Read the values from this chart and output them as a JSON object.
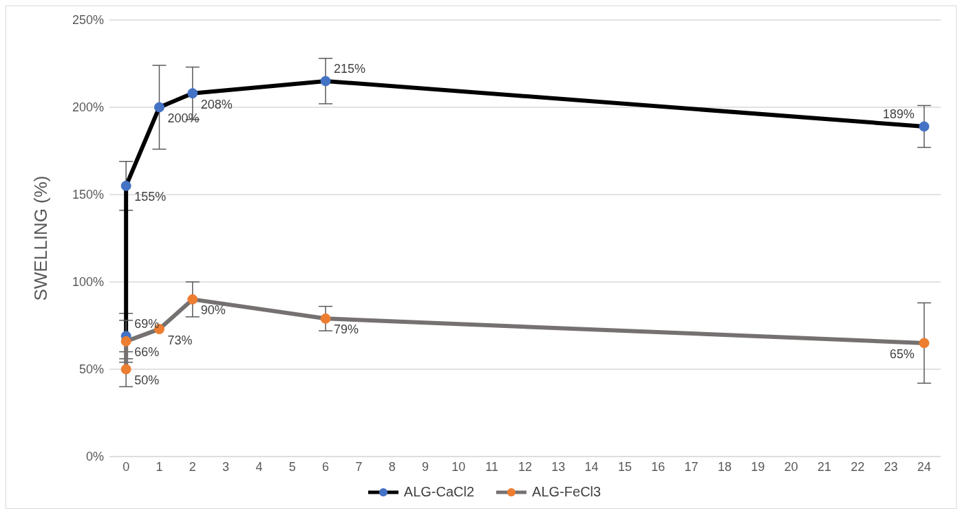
{
  "chart_data": {
    "type": "line",
    "ylabel": "SWELLING (%)",
    "xlim": [
      -0.5,
      24.5
    ],
    "xticks": [
      0,
      1,
      2,
      3,
      4,
      5,
      6,
      7,
      8,
      9,
      10,
      11,
      12,
      13,
      14,
      15,
      16,
      17,
      18,
      19,
      20,
      21,
      22,
      23,
      24
    ],
    "ylim": [
      0,
      250
    ],
    "yticks": [
      {
        "value": 0,
        "label": "0%"
      },
      {
        "value": 50,
        "label": "50%"
      },
      {
        "value": 100,
        "label": "100%"
      },
      {
        "value": 150,
        "label": "150%"
      },
      {
        "value": 200,
        "label": "200%"
      },
      {
        "value": 250,
        "label": "250%"
      }
    ],
    "grid": "y",
    "legend": "bottom",
    "marker": "circle",
    "line_style": "solid",
    "series": [
      {
        "name": "ALG-CaCl2",
        "color": "#000000",
        "colors": [
          "#4472c4",
          "#4472c4",
          "#4472c4",
          "#4472c4",
          "#4472c4",
          "#4472c4"
        ],
        "x": [
          0,
          0,
          1,
          2,
          6,
          24
        ],
        "values": [
          69,
          155,
          200,
          208,
          215,
          189
        ],
        "errors": [
          13,
          14,
          24,
          15,
          13,
          12
        ],
        "value_labels": [
          "69%",
          "155%",
          "200%",
          "208%",
          "215%",
          "189%"
        ]
      },
      {
        "name": "ALG-FeCl3",
        "color": "#767171",
        "colors": [
          "#ed7d31",
          "#ed7d31",
          "#ed7d31",
          "#ed7d31",
          "#ed7d31",
          "#ed7d31"
        ],
        "x": [
          0,
          0,
          1,
          2,
          6,
          24
        ],
        "values": [
          50,
          66,
          73,
          90,
          79,
          65
        ],
        "errors": [
          10,
          12,
          null,
          10,
          7,
          23
        ],
        "value_labels": [
          "50%",
          "66%",
          "73%",
          "90%",
          "79%",
          "65%"
        ]
      }
    ]
  }
}
